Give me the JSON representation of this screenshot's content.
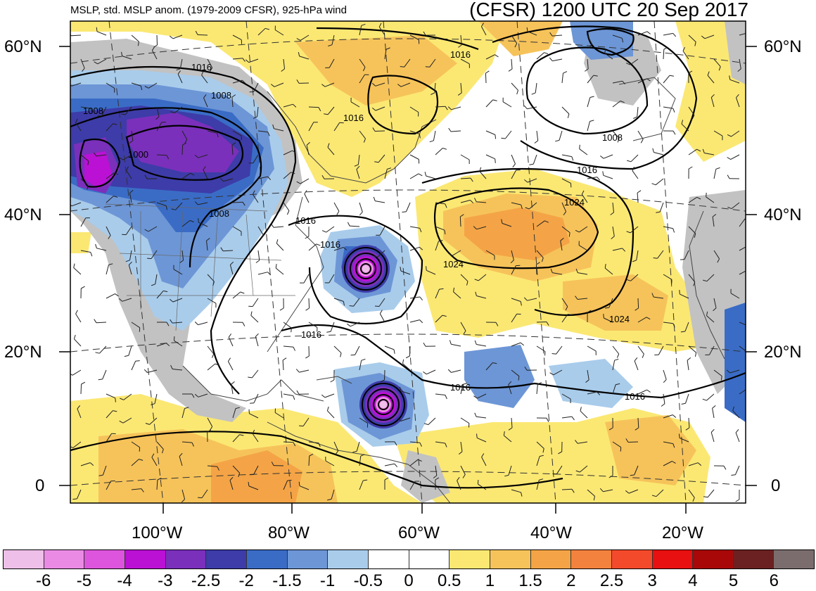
{
  "title_left": "MSLP, std. MSLP anom. (1979-2009 CFSR), 925-hPa wind",
  "title_right": "(CFSR) 1200 UTC 20 Sep 2017",
  "lat_labels": [
    "60°N",
    "40°N",
    "20°N",
    "0"
  ],
  "lon_labels": [
    "100°W",
    "80°W",
    "60°W",
    "40°W",
    "20°W"
  ],
  "isobar_labels": [
    "1016",
    "1008",
    "1008",
    "1000",
    "1016",
    "1008",
    "1016",
    "1016",
    "1024",
    "1024",
    "1016",
    "1016",
    "1024",
    "1016",
    "1016",
    "1008",
    "1016"
  ],
  "colorbar": {
    "colors": [
      "#eebfe8",
      "#ea8ae4",
      "#dd55dd",
      "#bb11d4",
      "#7a30bb",
      "#3d3ca8",
      "#3a6cc6",
      "#6d96d6",
      "#a9cceb",
      "#ffffff",
      "#ffffff",
      "#fbe873",
      "#f6c35a",
      "#f4a446",
      "#f3823e",
      "#f44a2c",
      "#e81010",
      "#a80808",
      "#6b2121",
      "#7b6d6d"
    ],
    "labels": [
      "-6",
      "-5",
      "-4",
      "-3",
      "-2.5",
      "-2",
      "-1.5",
      "-1",
      "-0.5",
      "0",
      "0.5",
      "1",
      "1.5",
      "2",
      "2.5",
      "3",
      "4",
      "5",
      "6"
    ]
  }
}
